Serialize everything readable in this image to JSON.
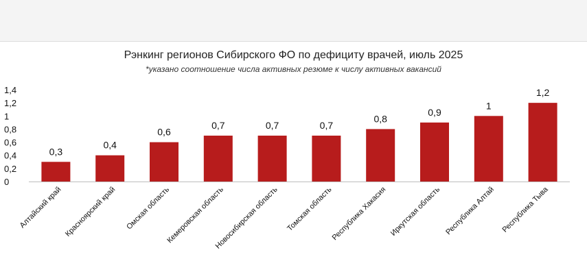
{
  "chart_data": {
    "type": "bar",
    "title": "Рэнкинг регионов Сибирского ФО по дефициту врачей, июль 2025",
    "subtitle": "*указано соотношение числа активных резюме к числу активных вакансий",
    "categories": [
      "Алтайский край",
      "Красноярский край",
      "Омская область",
      "Кемеровская область",
      "Новосибирская область",
      "Томская область",
      "Республика Хакасия",
      "Иркутская область",
      "Республика Алтай",
      "Республика Тыва"
    ],
    "values": [
      0.3,
      0.4,
      0.6,
      0.7,
      0.7,
      0.7,
      0.8,
      0.9,
      1,
      1.2
    ],
    "value_labels": [
      "0,3",
      "0,4",
      "0,6",
      "0,7",
      "0,7",
      "0,7",
      "0,8",
      "0,9",
      "1",
      "1,2"
    ],
    "yticks": [
      0,
      0.2,
      0.4,
      0.6,
      0.8,
      1,
      1.2,
      1.4
    ],
    "ytick_labels": [
      "0",
      "0,2",
      "0,4",
      "0,6",
      "0,8",
      "1",
      "1,2",
      "1,4"
    ],
    "ylim": [
      0,
      1.4
    ],
    "bar_color": "#b71c1c",
    "grid": false,
    "legend": "none"
  }
}
